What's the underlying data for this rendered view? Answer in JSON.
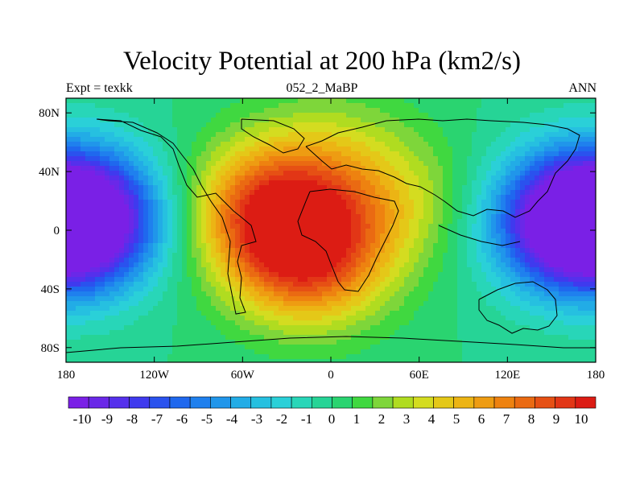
{
  "chart_data": {
    "type": "heatmap",
    "title": "Velocity Potential at 200 hPa (km2/s)",
    "subtitle_left": "Expt = texkk",
    "subtitle_center": "052_2_MaBP",
    "subtitle_right": "ANN",
    "x_ticks": [
      "180",
      "120W",
      "60W",
      "0",
      "60E",
      "120E",
      "180"
    ],
    "x_tick_values": [
      -180,
      -120,
      -60,
      0,
      60,
      120,
      180
    ],
    "y_ticks": [
      "80N",
      "40N",
      "0",
      "40S",
      "80S"
    ],
    "y_tick_values": [
      80,
      40,
      0,
      -40,
      -80
    ],
    "xlim": [
      -180,
      180
    ],
    "ylim": [
      -90,
      90
    ],
    "colorbar_labels": [
      "-10",
      "-9",
      "-8",
      "-7",
      "-6",
      "-5",
      "-4",
      "-3",
      "-2",
      "-1",
      "0",
      "1",
      "2",
      "3",
      "4",
      "5",
      "6",
      "7",
      "8",
      "9",
      "10"
    ],
    "colorbar_colors": [
      "#7a20e6",
      "#6a28e8",
      "#5530ec",
      "#3f3aee",
      "#2a52ee",
      "#1f68ee",
      "#1f80ee",
      "#2096ea",
      "#22ace6",
      "#26c0e0",
      "#2ad0d8",
      "#28d6b8",
      "#26d496",
      "#2ad470",
      "#40d840",
      "#7ed63a",
      "#b0dc20",
      "#d4dc20",
      "#e4c818",
      "#ecb414",
      "#ee9c12",
      "#ee8210",
      "#ea6a12",
      "#e65014",
      "#e23616",
      "#dc1c14"
    ],
    "field_sources": [
      {
        "lon": -170,
        "lat": 8,
        "amp": -10
      },
      {
        "lon": 165,
        "lat": 5,
        "amp": -10
      },
      {
        "lon": -40,
        "lat": 15,
        "amp": 8
      },
      {
        "lon": -15,
        "lat": -20,
        "amp": 8
      },
      {
        "lon": 40,
        "lat": 20,
        "amp": 3
      },
      {
        "lon": 0,
        "lat": 55,
        "amp": 2
      }
    ]
  }
}
